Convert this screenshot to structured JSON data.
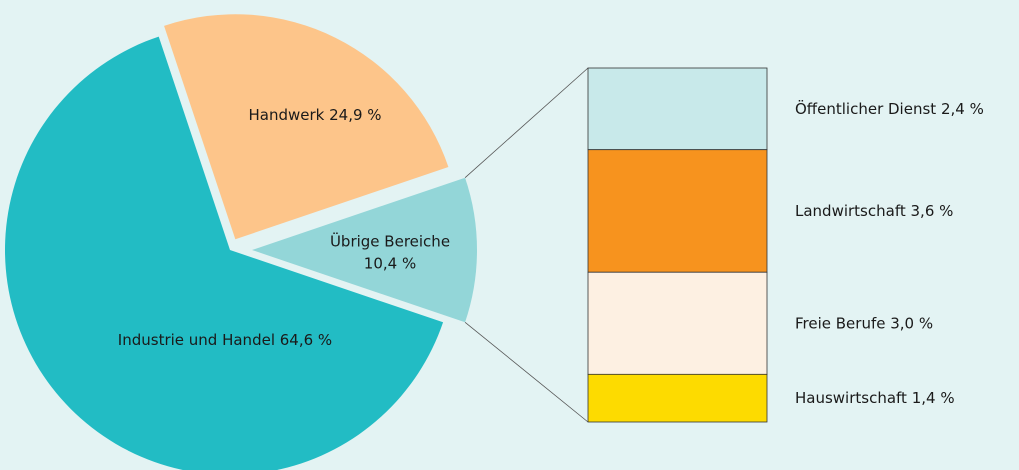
{
  "chart_data": [
    {
      "type": "pie",
      "categories": [
        "Industrie und Handel",
        "Handwerk",
        "Übrige Bereiche"
      ],
      "values": [
        64.6,
        24.9,
        10.4
      ],
      "value_labels": [
        "64,6 %",
        "24,9 %",
        "10,4 %"
      ],
      "colors": [
        "#22bcc4",
        "#fdc58a",
        "#93d6d8"
      ]
    },
    {
      "type": "stacked-bar",
      "categories": [
        "Öffentlicher Dienst",
        "Landwirtschaft",
        "Freie Berufe",
        "Hauswirtschaft"
      ],
      "values": [
        2.4,
        3.6,
        3.0,
        1.4
      ],
      "value_labels": [
        "2,4 %",
        "3,6 %",
        "3,0 %",
        "1,4 %"
      ],
      "colors": [
        "#c8e9ea",
        "#f7931e",
        "#fdf0e2",
        "#fddb00"
      ]
    }
  ]
}
